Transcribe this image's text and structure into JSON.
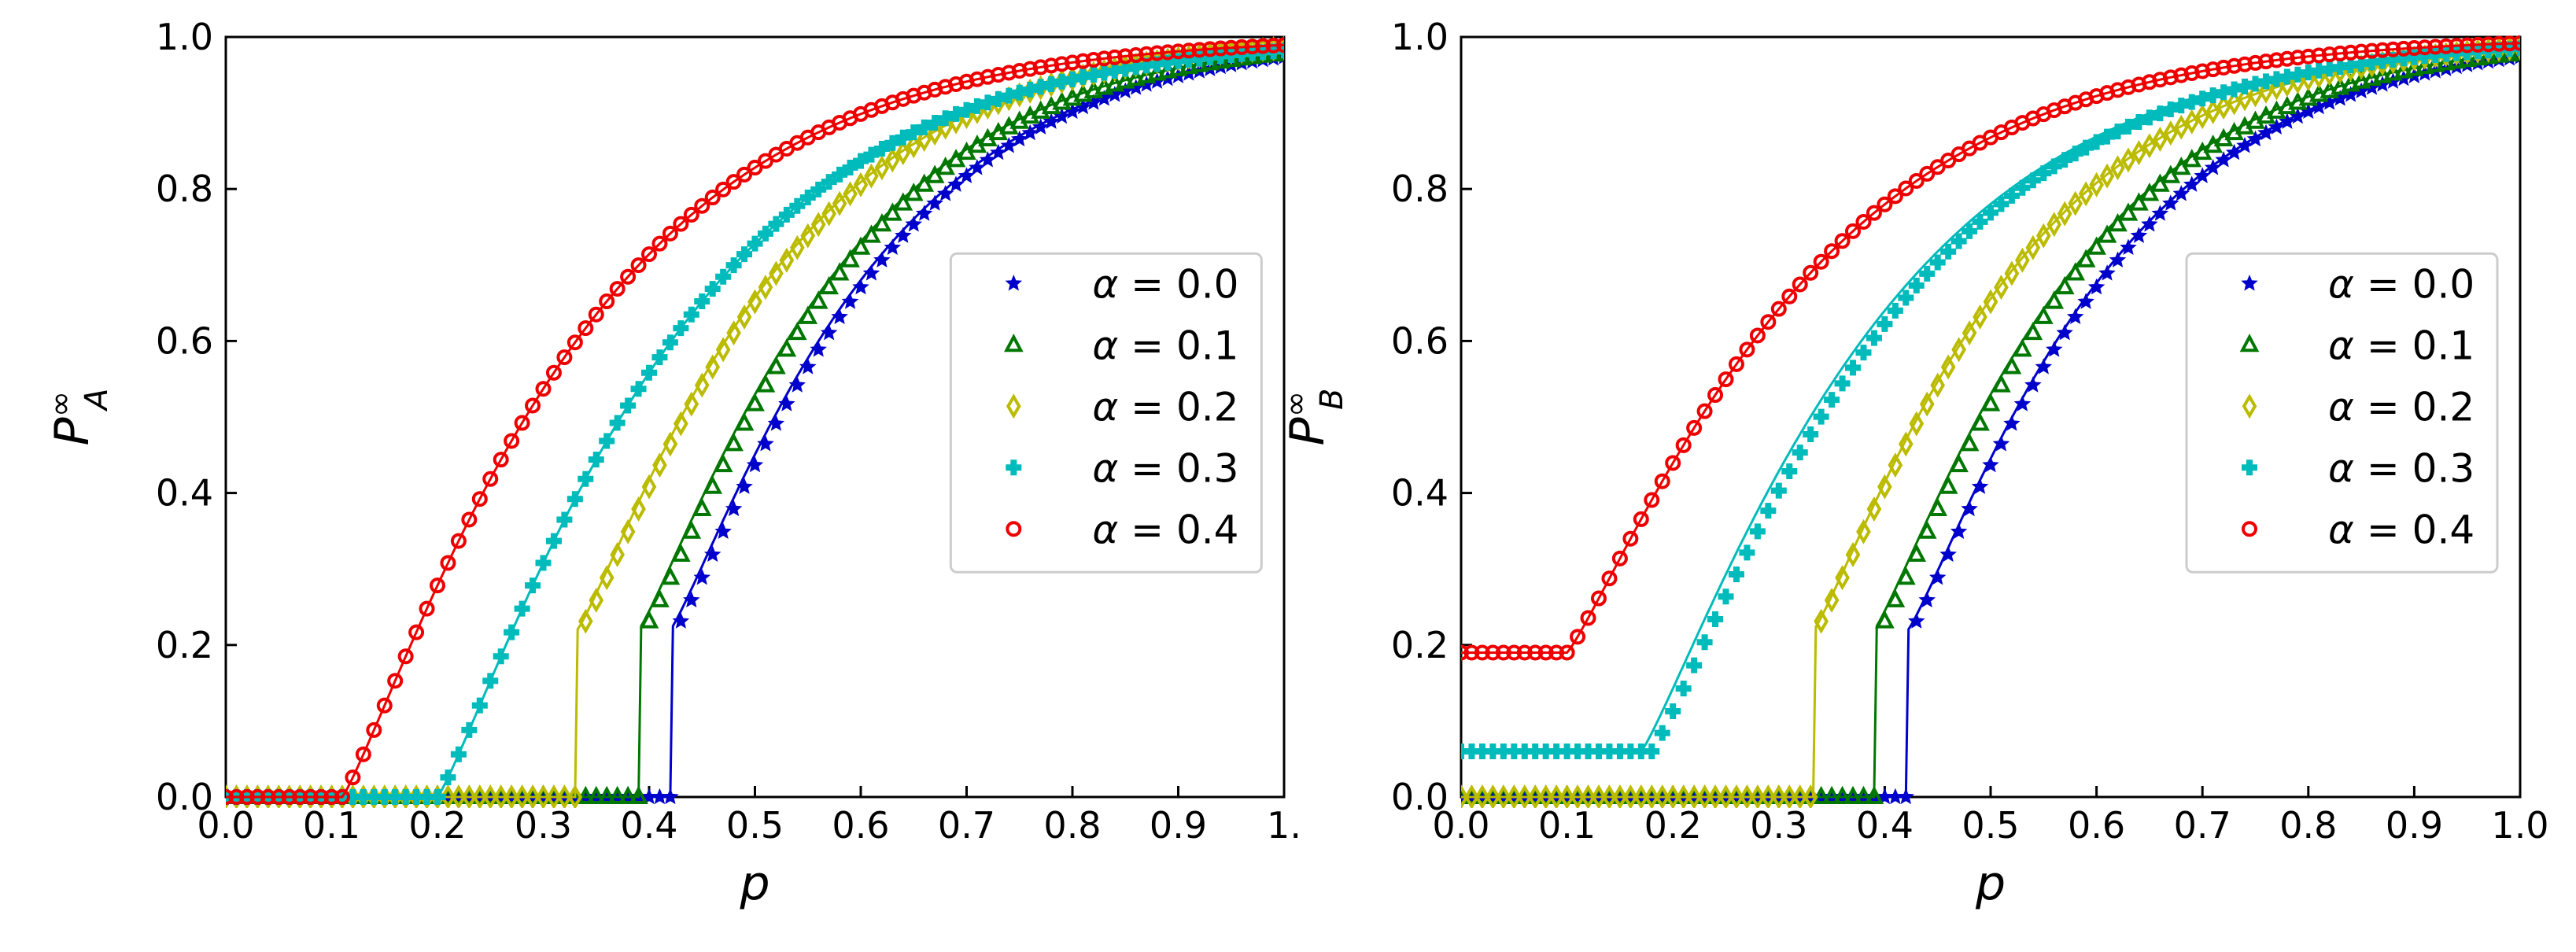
{
  "chart_data": [
    {
      "type": "line",
      "title": "",
      "xlabel": "p",
      "ylabel_main": "P",
      "ylabel_sup": "∞",
      "ylabel_sub": "A",
      "xlim": [
        0.0,
        1.0
      ],
      "ylim": [
        0.0,
        1.0
      ],
      "x_ticks": [
        "0.0",
        "0.1",
        "0.2",
        "0.3",
        "0.4",
        "0.5",
        "0.6",
        "0.7",
        "0.8",
        "0.9",
        "1."
      ],
      "y_ticks": [
        "0.0",
        "0.2",
        "0.4",
        "0.6",
        "0.8",
        "1.0"
      ],
      "legend_position": "center-right",
      "series": [
        {
          "name": "α = 0.0",
          "color": "#0000cc",
          "marker": "star",
          "pc": 0.425,
          "base": 0.0,
          "theory_pc": 0.42
        },
        {
          "name": "α = 0.1",
          "color": "#007700",
          "marker": "triangle",
          "pc": 0.395,
          "base": 0.0,
          "theory_pc": 0.39
        },
        {
          "name": "α = 0.2",
          "color": "#bbbb00",
          "marker": "diamond",
          "pc": 0.335,
          "base": 0.0,
          "theory_pc": 0.332
        },
        {
          "name": "α = 0.3",
          "color": "#00bbbb",
          "marker": "plus",
          "pc": 0.2,
          "base": 0.0,
          "theory_pc": 0.2
        },
        {
          "name": "α = 0.4",
          "color": "#ee0000",
          "marker": "circle",
          "pc": 0.11,
          "base": 0.0,
          "theory_pc": 0.11
        }
      ]
    },
    {
      "type": "line",
      "title": "",
      "xlabel": "p",
      "ylabel_main": "P",
      "ylabel_sup": "∞",
      "ylabel_sub": "B",
      "xlim": [
        0.0,
        1.0
      ],
      "ylim": [
        0.0,
        1.0
      ],
      "x_ticks": [
        "0.0",
        "0.1",
        "0.2",
        "0.3",
        "0.4",
        "0.5",
        "0.6",
        "0.7",
        "0.8",
        "0.9",
        "1.0"
      ],
      "y_ticks": [
        "0.0",
        "0.2",
        "0.4",
        "0.6",
        "0.8",
        "1.0"
      ],
      "legend_position": "center-right",
      "series": [
        {
          "name": "α = 0.0",
          "color": "#0000cc",
          "marker": "star",
          "pc": 0.425,
          "base": 0.0,
          "theory_pc": 0.422
        },
        {
          "name": "α = 0.1",
          "color": "#007700",
          "marker": "triangle",
          "pc": 0.395,
          "base": 0.0,
          "theory_pc": 0.39
        },
        {
          "name": "α = 0.2",
          "color": "#bbbb00",
          "marker": "diamond",
          "pc": 0.335,
          "base": 0.0,
          "theory_pc": 0.333
        },
        {
          "name": "α = 0.3",
          "color": "#00bbbb",
          "marker": "plus",
          "pc": 0.18,
          "base": 0.06,
          "theory_pc": 0.17
        },
        {
          "name": "α = 0.4",
          "color": "#ee0000",
          "marker": "circle",
          "pc": 0.1,
          "base": 0.19,
          "theory_pc": 0.1
        }
      ]
    }
  ]
}
